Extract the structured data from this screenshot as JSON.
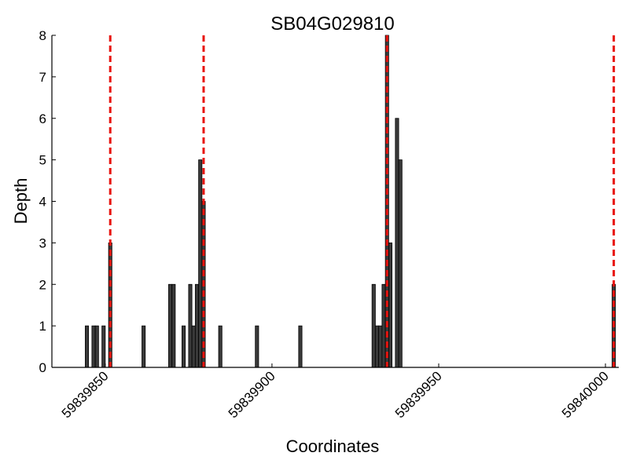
{
  "chart_data": {
    "type": "bar",
    "title": "SB04G029810",
    "xlabel": "Coordinates",
    "ylabel": "Depth",
    "xlim": [
      59839834,
      59840004
    ],
    "ylim": [
      0,
      8
    ],
    "x_ticks": [
      {
        "value": 59839850,
        "label": "59839850"
      },
      {
        "value": 59839900,
        "label": "59839900"
      },
      {
        "value": 59839950,
        "label": "59839950"
      },
      {
        "value": 59840000,
        "label": "59840000"
      }
    ],
    "y_ticks": [
      {
        "value": 0,
        "label": "0"
      },
      {
        "value": 1,
        "label": "1"
      },
      {
        "value": 2,
        "label": "2"
      },
      {
        "value": 3,
        "label": "3"
      },
      {
        "value": 4,
        "label": "4"
      },
      {
        "value": 5,
        "label": "5"
      },
      {
        "value": 6,
        "label": "6"
      },
      {
        "value": 7,
        "label": "7"
      },
      {
        "value": 8,
        "label": "8"
      }
    ],
    "bar_width": 1,
    "bars": [
      {
        "x": 59839844,
        "y": 1
      },
      {
        "x": 59839846,
        "y": 1
      },
      {
        "x": 59839847,
        "y": 1
      },
      {
        "x": 59839849,
        "y": 1
      },
      {
        "x": 59839851,
        "y": 3
      },
      {
        "x": 59839861,
        "y": 1
      },
      {
        "x": 59839869,
        "y": 2
      },
      {
        "x": 59839870,
        "y": 2
      },
      {
        "x": 59839873,
        "y": 1
      },
      {
        "x": 59839875,
        "y": 2
      },
      {
        "x": 59839876,
        "y": 1
      },
      {
        "x": 59839877,
        "y": 2
      },
      {
        "x": 59839878,
        "y": 5
      },
      {
        "x": 59839879,
        "y": 4
      },
      {
        "x": 59839884,
        "y": 1
      },
      {
        "x": 59839895,
        "y": 1
      },
      {
        "x": 59839908,
        "y": 1
      },
      {
        "x": 59839930,
        "y": 2
      },
      {
        "x": 59839931,
        "y": 1
      },
      {
        "x": 59839932,
        "y": 1
      },
      {
        "x": 59839933,
        "y": 2
      },
      {
        "x": 59839934,
        "y": 8
      },
      {
        "x": 59839935,
        "y": 3
      },
      {
        "x": 59839937,
        "y": 6
      },
      {
        "x": 59839938,
        "y": 5
      },
      {
        "x": 59840002,
        "y": 2
      }
    ],
    "vlines": [
      59839851.5,
      59839879.5,
      59839934.5,
      59840002.5
    ],
    "grid": false,
    "colors": {
      "bar_fill": "#3a3a3a",
      "bar_edge": "#000000",
      "vline": "#e8130e",
      "axis": "#000000"
    }
  }
}
